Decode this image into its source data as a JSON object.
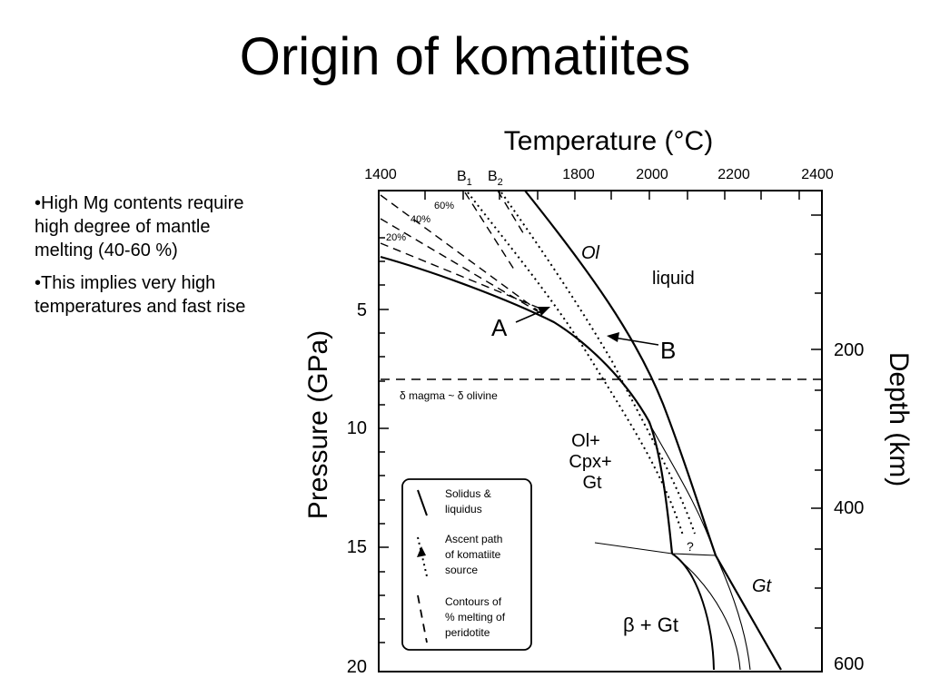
{
  "slide": {
    "title": "Origin of komatiites",
    "bullets": [
      "•High Mg contents require high degree of mantle melting (40-60 %)",
      "•This implies very high temperatures and fast rise"
    ]
  },
  "figure": {
    "top_axis_title": "Temperature (°C)",
    "top_ticks": [
      "1400",
      "1800",
      "2000",
      "2200",
      "2400"
    ],
    "b1_label": "B",
    "b1_sub": "1",
    "b2_label": "B",
    "b2_sub": "2",
    "left_axis_title": "Pressure (GPa)",
    "left_ticks": [
      "5",
      "10",
      "15",
      "20"
    ],
    "right_axis_title": "Depth (km)",
    "right_ticks": [
      "200",
      "400",
      "600"
    ],
    "contour_labels": [
      "60%",
      "40%",
      "20%"
    ],
    "field_liquid": "liquid",
    "label_ol": "Ol",
    "label_gt": "Gt",
    "field_ol_cpx_gt": [
      "Ol+",
      "Cpx+",
      "Gt"
    ],
    "field_beta_gt": "β + Gt",
    "arrow_a": "A",
    "arrow_b": "B",
    "question_mark": "?",
    "dashed_line_label": "δ magma ~ δ olivine",
    "legend": {
      "solidus": [
        "Solidus &",
        "liquidus"
      ],
      "ascent": [
        "Ascent path",
        "of komatiite",
        "source"
      ],
      "contours": [
        "Contours of",
        "% melting of",
        "peridotite"
      ]
    }
  }
}
